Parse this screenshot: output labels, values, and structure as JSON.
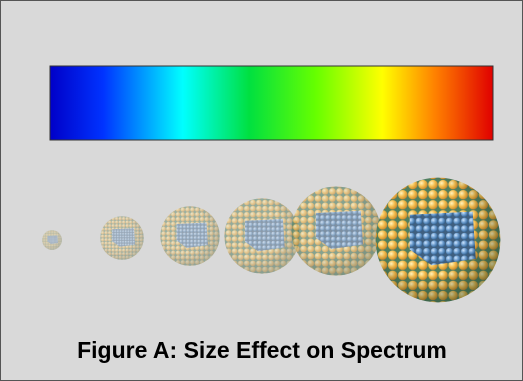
{
  "caption": "Figure A: Size Effect on Spectrum"
}
